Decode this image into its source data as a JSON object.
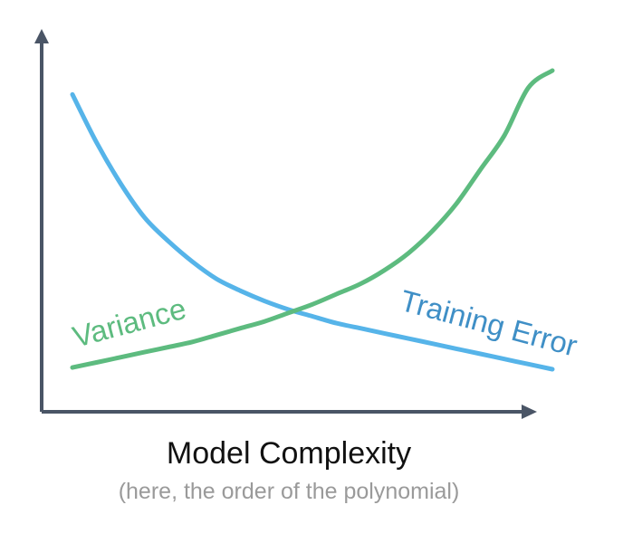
{
  "chart_data": {
    "type": "line",
    "title": "",
    "xlabel": "Model Complexity",
    "xlabel_note": "(here, the order of the polynomial)",
    "ylabel": "",
    "grid": false,
    "legend": "none",
    "series": [
      {
        "name": "Training Error",
        "color": "#56b4e9",
        "x": [
          0.0,
          0.05,
          0.1,
          0.15,
          0.2,
          0.25,
          0.3,
          0.35,
          0.4,
          0.45,
          0.5,
          0.55,
          0.6,
          0.65,
          0.7,
          0.75,
          0.8,
          0.85,
          0.9,
          0.95,
          1.0
        ],
        "y": [
          0.93,
          0.79,
          0.67,
          0.57,
          0.5,
          0.44,
          0.39,
          0.355,
          0.325,
          0.3,
          0.28,
          0.26,
          0.245,
          0.23,
          0.215,
          0.2,
          0.185,
          0.17,
          0.155,
          0.14,
          0.125
        ]
      },
      {
        "name": "Variance",
        "color": "#5dbb7f",
        "x": [
          0.0,
          0.05,
          0.1,
          0.15,
          0.2,
          0.25,
          0.3,
          0.35,
          0.4,
          0.45,
          0.5,
          0.55,
          0.6,
          0.65,
          0.7,
          0.75,
          0.8,
          0.85,
          0.9,
          0.95,
          1.0
        ],
        "y": [
          0.13,
          0.145,
          0.16,
          0.175,
          0.19,
          0.205,
          0.225,
          0.245,
          0.265,
          0.29,
          0.315,
          0.345,
          0.375,
          0.415,
          0.465,
          0.53,
          0.61,
          0.71,
          0.81,
          0.95,
          1.0
        ]
      }
    ],
    "annotations": [
      {
        "series": "Variance",
        "text": "Variance"
      },
      {
        "series": "Training Error",
        "text": "Training Error"
      }
    ],
    "colors": {
      "axis": "#4a5566",
      "training_error": "#56b4e9",
      "training_error_label": "#3f8fc6",
      "variance": "#5dbb7f",
      "subtitle": "#9a9a9a"
    }
  }
}
